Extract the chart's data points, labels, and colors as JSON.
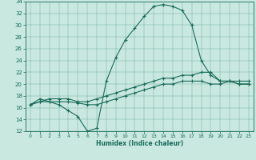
{
  "xlabel": "Humidex (Indice chaleur)",
  "bg_color": "#c8e8e0",
  "line_color": "#1a6b5a",
  "xlim": [
    -0.5,
    23.5
  ],
  "ylim": [
    12,
    34
  ],
  "xticks": [
    0,
    1,
    2,
    3,
    4,
    5,
    6,
    7,
    8,
    9,
    10,
    11,
    12,
    13,
    14,
    15,
    16,
    17,
    18,
    19,
    20,
    21,
    22,
    23
  ],
  "yticks": [
    12,
    14,
    16,
    18,
    20,
    22,
    24,
    26,
    28,
    30,
    32,
    34
  ],
  "curve1_x": [
    0,
    1,
    2,
    3,
    4,
    5,
    6,
    7,
    8,
    9,
    10,
    11,
    12,
    13,
    14,
    15,
    16,
    17,
    18,
    19,
    20,
    21,
    22,
    23
  ],
  "curve1_y": [
    16.5,
    17.5,
    17.0,
    16.5,
    15.5,
    14.5,
    12.0,
    12.5,
    20.5,
    24.5,
    27.5,
    29.5,
    31.5,
    33.2,
    33.5,
    33.2,
    32.5,
    30.0,
    24.0,
    21.5,
    20.5,
    20.5,
    20.0,
    20.0
  ],
  "curve2_x": [
    0,
    1,
    2,
    3,
    4,
    5,
    6,
    7,
    8,
    9,
    10,
    11,
    12,
    13,
    14,
    15,
    16,
    17,
    18,
    19,
    20,
    21,
    22,
    23
  ],
  "curve2_y": [
    16.5,
    17.0,
    17.5,
    17.5,
    17.5,
    17.0,
    17.0,
    17.5,
    18.0,
    18.5,
    19.0,
    19.5,
    20.0,
    20.5,
    21.0,
    21.0,
    21.5,
    21.5,
    22.0,
    22.0,
    20.5,
    20.5,
    20.5,
    20.5
  ],
  "curve3_x": [
    0,
    1,
    2,
    3,
    4,
    5,
    6,
    7,
    8,
    9,
    10,
    11,
    12,
    13,
    14,
    15,
    16,
    17,
    18,
    19,
    20,
    21,
    22,
    23
  ],
  "curve3_y": [
    16.5,
    17.0,
    17.0,
    17.0,
    17.0,
    16.8,
    16.5,
    16.5,
    17.0,
    17.5,
    18.0,
    18.5,
    19.0,
    19.5,
    20.0,
    20.0,
    20.5,
    20.5,
    20.5,
    20.0,
    20.0,
    20.5,
    20.0,
    20.0
  ]
}
